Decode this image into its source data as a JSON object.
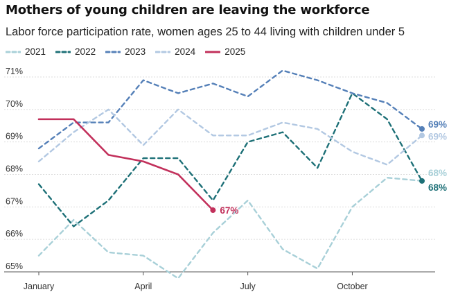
{
  "chart_data": {
    "type": "line",
    "title": "Mothers of young children are leaving the workforce",
    "subtitle": "Labor force participation rate, women ages 25 to 44 living with children under 5",
    "xlabel": "",
    "ylabel": "",
    "x_months": [
      1,
      2,
      3,
      4,
      5,
      6,
      7,
      8,
      9,
      10,
      11,
      12
    ],
    "xlim": [
      1,
      12
    ],
    "ylim": [
      64.9,
      71.3
    ],
    "y_ticks": [
      65,
      66,
      67,
      68,
      69,
      70,
      71
    ],
    "y_tick_labels": [
      "65%",
      "66%",
      "67%",
      "68%",
      "69%",
      "70%",
      "71%"
    ],
    "x_ticks": [
      1,
      4,
      7,
      10
    ],
    "x_tick_labels": [
      "January",
      "April",
      "July",
      "October"
    ],
    "grid": "horizontal",
    "legend_position": "top-left",
    "series": [
      {
        "name": "2021",
        "color": "#a8d0d8",
        "dash": "dashed",
        "values": [
          65.5,
          66.6,
          65.6,
          65.5,
          64.8,
          66.2,
          67.2,
          65.7,
          65.1,
          67.0,
          67.9,
          67.8
        ]
      },
      {
        "name": "2022",
        "color": "#1d7077",
        "dash": "dashed",
        "values": [
          67.7,
          66.4,
          67.2,
          68.5,
          68.5,
          67.2,
          69.0,
          69.3,
          68.2,
          70.5,
          69.7,
          67.8
        ],
        "end_label": "68%"
      },
      {
        "name": "2023",
        "color": "#5580b8",
        "dash": "dashed",
        "values": [
          68.8,
          69.6,
          69.6,
          70.9,
          70.5,
          70.8,
          70.4,
          71.2,
          70.9,
          70.5,
          70.2,
          69.4
        ],
        "end_label": "69%"
      },
      {
        "name": "2024",
        "color": "#b2c8e2",
        "dash": "dashed",
        "values": [
          68.4,
          69.3,
          70.0,
          68.9,
          70.0,
          69.2,
          69.2,
          69.6,
          69.4,
          68.7,
          68.3,
          69.2
        ],
        "end_label": "69%"
      },
      {
        "name": "2025",
        "color": "#c2305b",
        "dash": "solid",
        "values": [
          69.7,
          69.7,
          68.6,
          68.4,
          68.0,
          66.9
        ],
        "end_label": "67%"
      }
    ],
    "end_labels_shown": [
      {
        "series": "2023",
        "text": "69%"
      },
      {
        "series": "2024",
        "text": "69%"
      },
      {
        "series": "2021",
        "text": "68%"
      },
      {
        "series": "2022",
        "text": "68%"
      },
      {
        "series": "2025",
        "text": "67%"
      }
    ]
  }
}
